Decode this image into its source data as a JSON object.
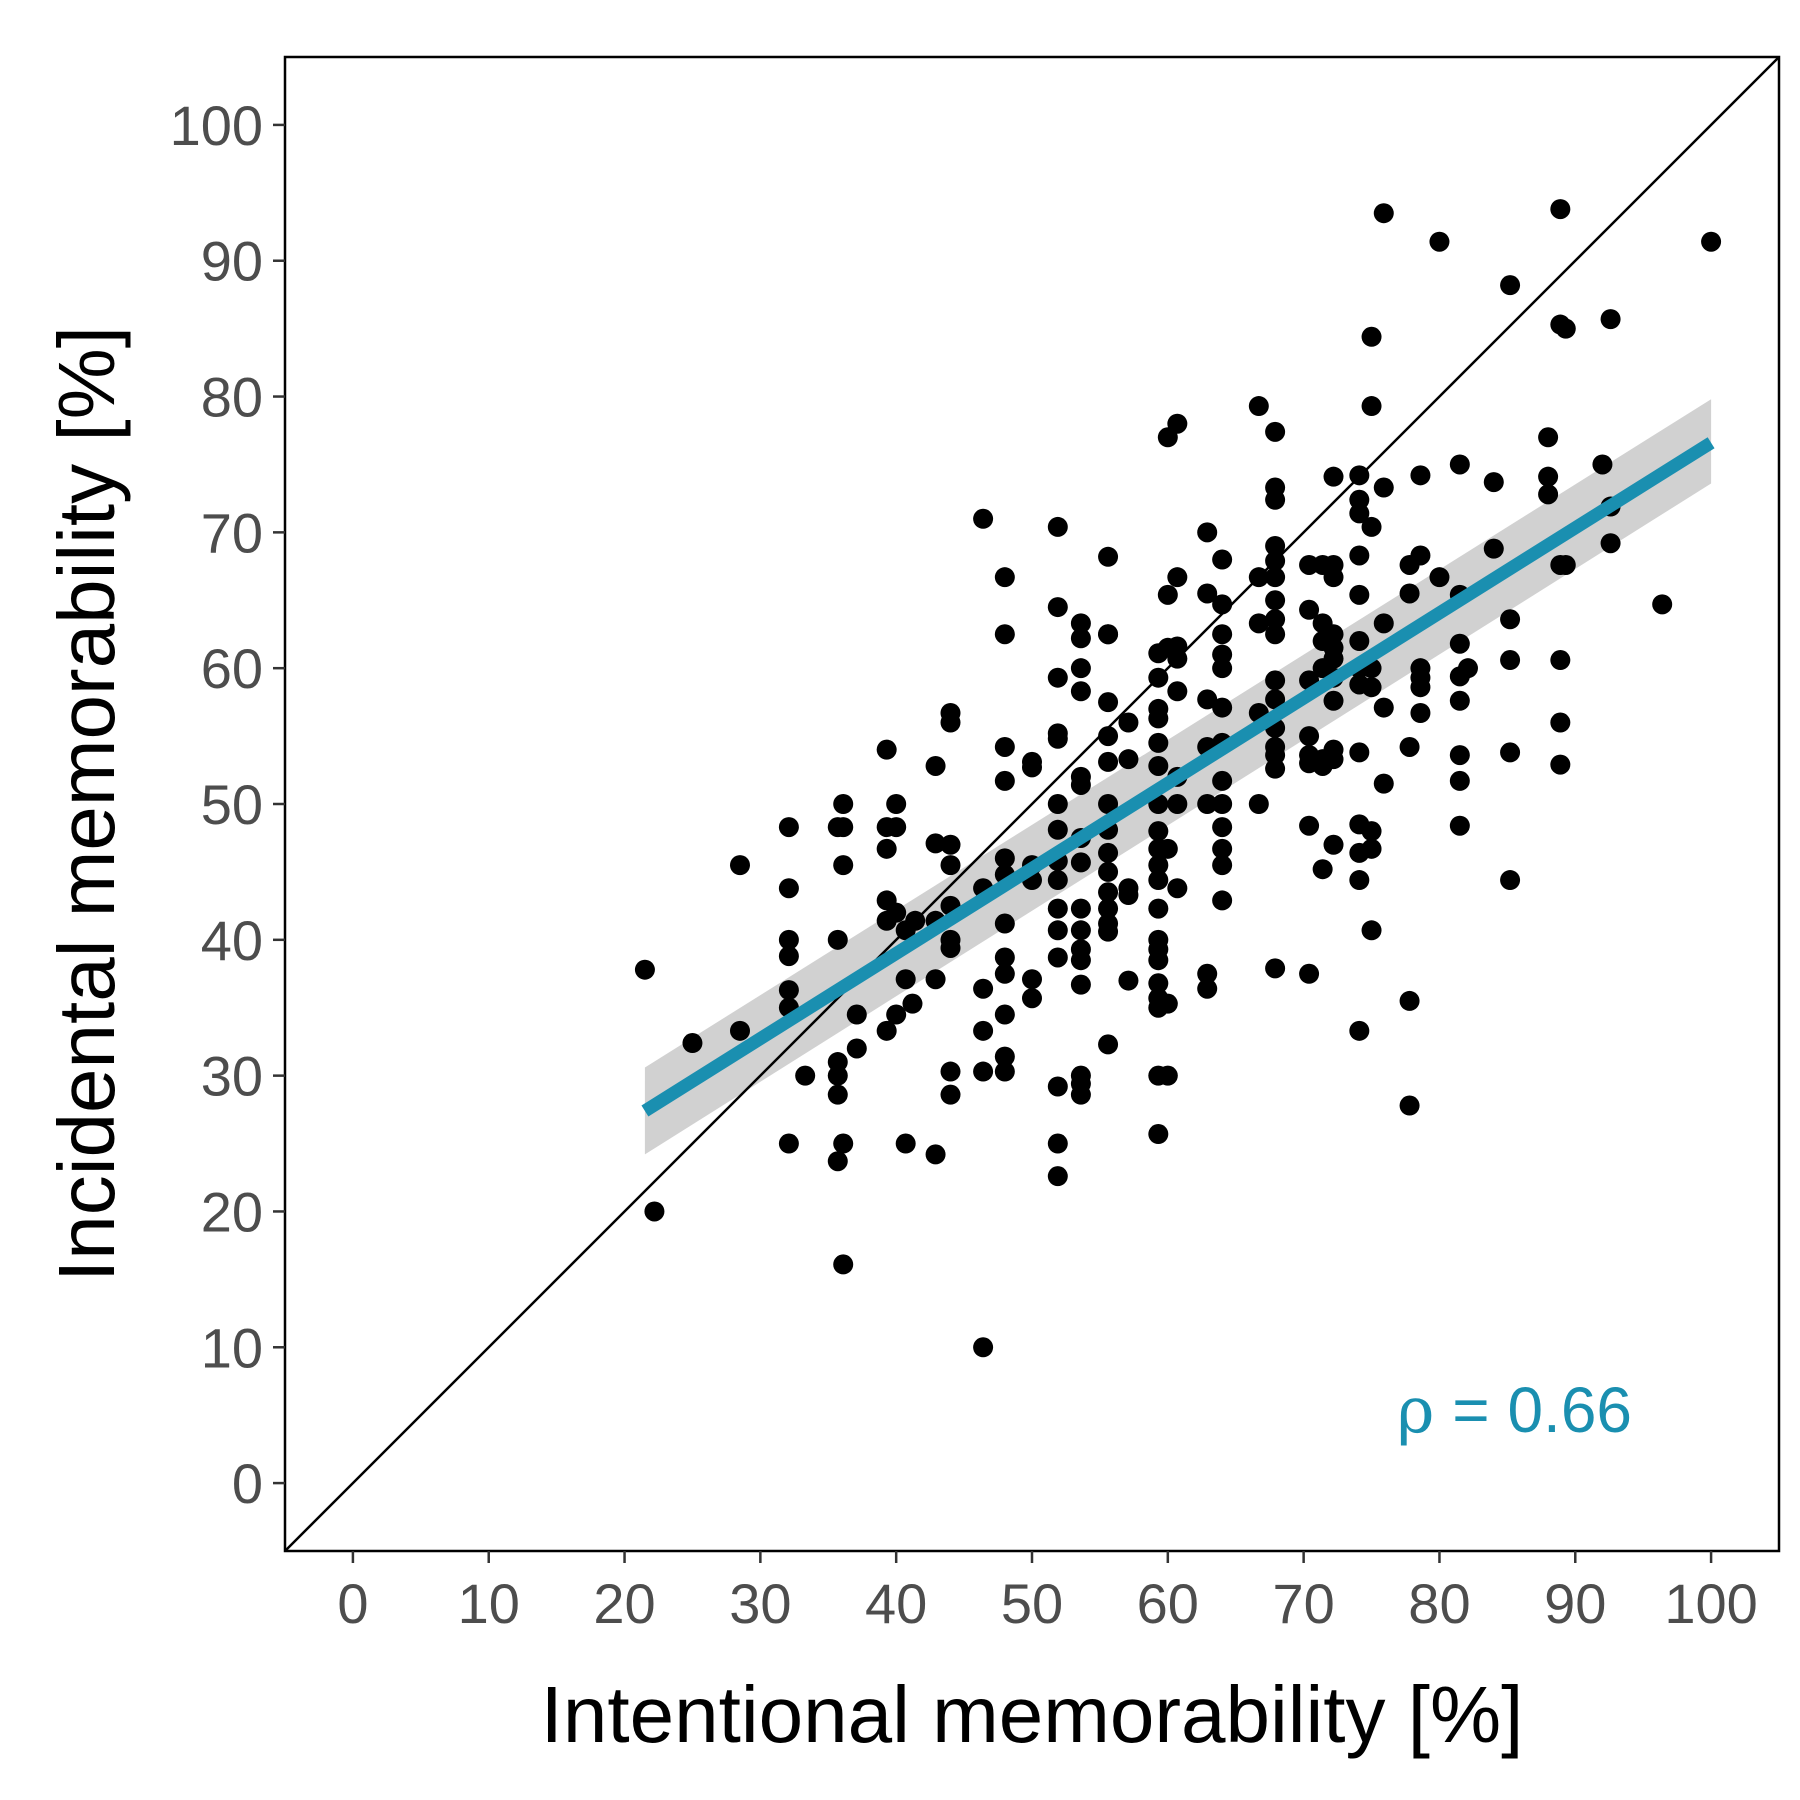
{
  "chart_data": {
    "type": "scatter",
    "title": "",
    "xlabel": "Intentional memorability [%]",
    "ylabel": "Incidental memorability [%]",
    "xlim": [
      -5,
      105
    ],
    "ylim": [
      -5,
      105
    ],
    "x_ticks": [
      0,
      10,
      20,
      30,
      40,
      50,
      60,
      70,
      80,
      90,
      100
    ],
    "y_ticks": [
      0,
      10,
      20,
      30,
      40,
      50,
      60,
      70,
      80,
      90,
      100
    ],
    "grid": false,
    "identity_line": true,
    "annotation": {
      "symbol": "ρ",
      "equals": "=",
      "value": "0.66",
      "position": "bottom-right"
    },
    "colors": {
      "points": "#000000",
      "fit_line": "#1a8fb0",
      "confidence_band": "#cccccc",
      "identity_line": "#000000"
    },
    "fit_line": {
      "x": [
        21.5,
        100
      ],
      "y": [
        27.4,
        76.6
      ],
      "ci_lower": [
        24.2,
        73.6
      ],
      "ci_upper": [
        30.6,
        79.8
      ]
    },
    "series": [
      {
        "points": [
          [
            21.5,
            37.8
          ],
          [
            22.2,
            20
          ],
          [
            25,
            32.4
          ],
          [
            28.5,
            45.5
          ],
          [
            28.5,
            33.3
          ],
          [
            32.1,
            48.3
          ],
          [
            32.1,
            43.8
          ],
          [
            32.1,
            40
          ],
          [
            32.1,
            38.8
          ],
          [
            32.1,
            36.3
          ],
          [
            32.1,
            35
          ],
          [
            32.1,
            25
          ],
          [
            33.3,
            30
          ],
          [
            35.7,
            40
          ],
          [
            35.7,
            48.3
          ],
          [
            36.1,
            50
          ],
          [
            36.1,
            48.3
          ],
          [
            36.1,
            45.5
          ],
          [
            35.7,
            31
          ],
          [
            35.7,
            30
          ],
          [
            35.7,
            28.6
          ],
          [
            35.7,
            23.7
          ],
          [
            36.1,
            25
          ],
          [
            36.1,
            16.1
          ],
          [
            37.1,
            34.5
          ],
          [
            37.1,
            32
          ],
          [
            39.3,
            54
          ],
          [
            39.3,
            48.3
          ],
          [
            39.3,
            46.7
          ],
          [
            39.3,
            42.9
          ],
          [
            39.3,
            41.4
          ],
          [
            39.3,
            33.3
          ],
          [
            40,
            50
          ],
          [
            40,
            48.3
          ],
          [
            40,
            42
          ],
          [
            40,
            34.5
          ],
          [
            40.7,
            40.7
          ],
          [
            40.7,
            37.1
          ],
          [
            41.4,
            41.4
          ],
          [
            41.2,
            35.3
          ],
          [
            40.7,
            25
          ],
          [
            42.9,
            52.8
          ],
          [
            42.9,
            47.1
          ],
          [
            42.9,
            41.4
          ],
          [
            42.9,
            37.1
          ],
          [
            42.9,
            24.2
          ],
          [
            44,
            56.7
          ],
          [
            44,
            56
          ],
          [
            44,
            47
          ],
          [
            44,
            45.5
          ],
          [
            44,
            42.5
          ],
          [
            44,
            40
          ],
          [
            44,
            39.4
          ],
          [
            44,
            30.3
          ],
          [
            44,
            28.6
          ],
          [
            46.4,
            71
          ],
          [
            46.4,
            43.8
          ],
          [
            46.4,
            36.4
          ],
          [
            46.4,
            33.3
          ],
          [
            46.4,
            30.3
          ],
          [
            46.4,
            10
          ],
          [
            48,
            66.7
          ],
          [
            48,
            62.5
          ],
          [
            48,
            54.2
          ],
          [
            48,
            51.7
          ],
          [
            48,
            46
          ],
          [
            48,
            44.8
          ],
          [
            48,
            41.2
          ],
          [
            48,
            38.7
          ],
          [
            48,
            37.5
          ],
          [
            48,
            34.5
          ],
          [
            48,
            31.4
          ],
          [
            48,
            30.3
          ],
          [
            50,
            53.1
          ],
          [
            50,
            52.7
          ],
          [
            50,
            45.5
          ],
          [
            50,
            44.4
          ],
          [
            50,
            37.1
          ],
          [
            50,
            35.7
          ],
          [
            51.9,
            70.4
          ],
          [
            51.9,
            64.5
          ],
          [
            51.9,
            59.3
          ],
          [
            51.9,
            55.2
          ],
          [
            51.9,
            54.8
          ],
          [
            51.9,
            50
          ],
          [
            51.9,
            48.1
          ],
          [
            51.9,
            45.8
          ],
          [
            51.9,
            44.4
          ],
          [
            51.9,
            42.3
          ],
          [
            51.9,
            40.7
          ],
          [
            51.9,
            38.7
          ],
          [
            51.9,
            29.2
          ],
          [
            51.9,
            25
          ],
          [
            51.9,
            22.6
          ],
          [
            53.6,
            63.3
          ],
          [
            53.6,
            62.2
          ],
          [
            53.6,
            60
          ],
          [
            53.6,
            58.3
          ],
          [
            53.6,
            52
          ],
          [
            53.6,
            51.4
          ],
          [
            53.6,
            47.5
          ],
          [
            53.6,
            45.7
          ],
          [
            53.6,
            42.3
          ],
          [
            53.6,
            40.7
          ],
          [
            53.6,
            39.3
          ],
          [
            53.6,
            38.5
          ],
          [
            53.6,
            36.7
          ],
          [
            53.6,
            30
          ],
          [
            53.6,
            29.4
          ],
          [
            53.6,
            28.6
          ],
          [
            55.6,
            68.2
          ],
          [
            55.6,
            62.5
          ],
          [
            55.6,
            62.5
          ],
          [
            55.6,
            57.5
          ],
          [
            55.6,
            55
          ],
          [
            55.6,
            53.1
          ],
          [
            55.6,
            50
          ],
          [
            55.6,
            48.1
          ],
          [
            55.6,
            46.4
          ],
          [
            55.6,
            45
          ],
          [
            55.6,
            43.5
          ],
          [
            55.6,
            42.3
          ],
          [
            55.6,
            41.2
          ],
          [
            55.6,
            40.6
          ],
          [
            55.6,
            32.3
          ],
          [
            57.1,
            56
          ],
          [
            57.1,
            53.3
          ],
          [
            57.1,
            43.8
          ],
          [
            57.1,
            43.3
          ],
          [
            57.1,
            37
          ],
          [
            59.3,
            61.1
          ],
          [
            59.3,
            59.3
          ],
          [
            59.3,
            57
          ],
          [
            59.3,
            56.3
          ],
          [
            59.3,
            54.5
          ],
          [
            59.3,
            52.8
          ],
          [
            59.3,
            50
          ],
          [
            59.3,
            48
          ],
          [
            59.3,
            46.7
          ],
          [
            59.3,
            45.5
          ],
          [
            59.3,
            44.4
          ],
          [
            59.3,
            42.3
          ],
          [
            59.3,
            40
          ],
          [
            59.3,
            39.3
          ],
          [
            59.3,
            38.5
          ],
          [
            59.3,
            36.8
          ],
          [
            59.3,
            35.7
          ],
          [
            59.3,
            35
          ],
          [
            59.3,
            30
          ],
          [
            59.3,
            25.7
          ],
          [
            60,
            77
          ],
          [
            60,
            65.4
          ],
          [
            60,
            61.5
          ],
          [
            60,
            46.7
          ],
          [
            60,
            35.3
          ],
          [
            60,
            30
          ],
          [
            60.7,
            78
          ],
          [
            60.7,
            66.7
          ],
          [
            60.7,
            61.6
          ],
          [
            60.7,
            60.7
          ],
          [
            60.7,
            58.3
          ],
          [
            60.7,
            52
          ],
          [
            60.7,
            50
          ],
          [
            60.7,
            43.8
          ],
          [
            62.9,
            70
          ],
          [
            62.9,
            65.5
          ],
          [
            62.9,
            57.7
          ],
          [
            62.9,
            54.2
          ],
          [
            62.9,
            50
          ],
          [
            62.9,
            37.5
          ],
          [
            62.9,
            36.4
          ],
          [
            64,
            68
          ],
          [
            64,
            64.7
          ],
          [
            64,
            62.5
          ],
          [
            64,
            61
          ],
          [
            64,
            60
          ],
          [
            64,
            57.1
          ],
          [
            64,
            54.5
          ],
          [
            64,
            51.7
          ],
          [
            64,
            50
          ],
          [
            64,
            48.3
          ],
          [
            64,
            46.7
          ],
          [
            64,
            45.5
          ],
          [
            64,
            42.9
          ],
          [
            66.7,
            79.3
          ],
          [
            66.7,
            66.7
          ],
          [
            66.7,
            63.3
          ],
          [
            66.7,
            56.7
          ],
          [
            66.7,
            50
          ],
          [
            67.9,
            77.4
          ],
          [
            67.9,
            73.3
          ],
          [
            67.9,
            72.4
          ],
          [
            67.9,
            69
          ],
          [
            67.9,
            67.9
          ],
          [
            67.9,
            66.7
          ],
          [
            67.9,
            65
          ],
          [
            67.9,
            63.6
          ],
          [
            67.9,
            62.5
          ],
          [
            67.9,
            59.1
          ],
          [
            67.9,
            57.7
          ],
          [
            67.9,
            55.6
          ],
          [
            67.9,
            54.2
          ],
          [
            67.9,
            53.6
          ],
          [
            67.9,
            52.6
          ],
          [
            67.9,
            37.9
          ],
          [
            70.4,
            67.6
          ],
          [
            70.4,
            64.3
          ],
          [
            70.4,
            59.1
          ],
          [
            70.4,
            55
          ],
          [
            70.4,
            53.6
          ],
          [
            70.4,
            53
          ],
          [
            70.4,
            48.4
          ],
          [
            70.4,
            37.5
          ],
          [
            71.4,
            67.6
          ],
          [
            71.4,
            63.3
          ],
          [
            71.4,
            62
          ],
          [
            71.4,
            60
          ],
          [
            71.4,
            53.3
          ],
          [
            71.4,
            52.8
          ],
          [
            71.4,
            45.2
          ],
          [
            72.2,
            74.1
          ],
          [
            72.2,
            67.6
          ],
          [
            72.2,
            66.7
          ],
          [
            72.2,
            62.5
          ],
          [
            72.2,
            61.5
          ],
          [
            72.2,
            60.7
          ],
          [
            72.2,
            59.3
          ],
          [
            72.2,
            57.6
          ],
          [
            72.2,
            54
          ],
          [
            72.2,
            53.3
          ],
          [
            72.2,
            47
          ],
          [
            74.1,
            74.2
          ],
          [
            74.1,
            72.4
          ],
          [
            74.1,
            71.4
          ],
          [
            74.1,
            68.3
          ],
          [
            74.1,
            65.4
          ],
          [
            74.1,
            62
          ],
          [
            74.1,
            60
          ],
          [
            74.1,
            58.8
          ],
          [
            74.1,
            53.8
          ],
          [
            74.1,
            48.5
          ],
          [
            74.1,
            46.4
          ],
          [
            74.1,
            44.4
          ],
          [
            74.1,
            33.3
          ],
          [
            75,
            84.4
          ],
          [
            75,
            79.3
          ],
          [
            75,
            70.4
          ],
          [
            75,
            60
          ],
          [
            75,
            58.6
          ],
          [
            75,
            48
          ],
          [
            75,
            46.7
          ],
          [
            75,
            40.7
          ],
          [
            75.9,
            93.5
          ],
          [
            75.9,
            73.3
          ],
          [
            75.9,
            63.3
          ],
          [
            75.9,
            57.1
          ],
          [
            75.9,
            51.5
          ],
          [
            77.8,
            67.6
          ],
          [
            77.8,
            65.5
          ],
          [
            77.8,
            54.2
          ],
          [
            77.8,
            35.5
          ],
          [
            77.8,
            27.8
          ],
          [
            78.6,
            74.2
          ],
          [
            78.6,
            68.3
          ],
          [
            78.6,
            60
          ],
          [
            78.6,
            59.3
          ],
          [
            78.6,
            58.6
          ],
          [
            78.6,
            56.7
          ],
          [
            80,
            91.4
          ],
          [
            80,
            66.7
          ],
          [
            81.5,
            75
          ],
          [
            81.5,
            65.4
          ],
          [
            81.5,
            61.8
          ],
          [
            81.5,
            59.4
          ],
          [
            81.5,
            57.6
          ],
          [
            81.5,
            53.6
          ],
          [
            81.5,
            51.7
          ],
          [
            81.5,
            48.4
          ],
          [
            82.1,
            60
          ],
          [
            84,
            73.7
          ],
          [
            84,
            68.8
          ],
          [
            85.2,
            88.2
          ],
          [
            85.2,
            63.6
          ],
          [
            85.2,
            60.6
          ],
          [
            85.2,
            53.8
          ],
          [
            85.2,
            44.4
          ],
          [
            88,
            77
          ],
          [
            88,
            74.1
          ],
          [
            88,
            72.8
          ],
          [
            88.9,
            93.8
          ],
          [
            88.9,
            85.3
          ],
          [
            88.9,
            67.6
          ],
          [
            88.9,
            60.6
          ],
          [
            88.9,
            56
          ],
          [
            88.9,
            52.9
          ],
          [
            89.3,
            85
          ],
          [
            89.3,
            67.6
          ],
          [
            92,
            75
          ],
          [
            92.6,
            85.7
          ],
          [
            92.6,
            71.9
          ],
          [
            92.6,
            69.2
          ],
          [
            96.4,
            64.7
          ],
          [
            100,
            91.4
          ]
        ]
      }
    ]
  }
}
